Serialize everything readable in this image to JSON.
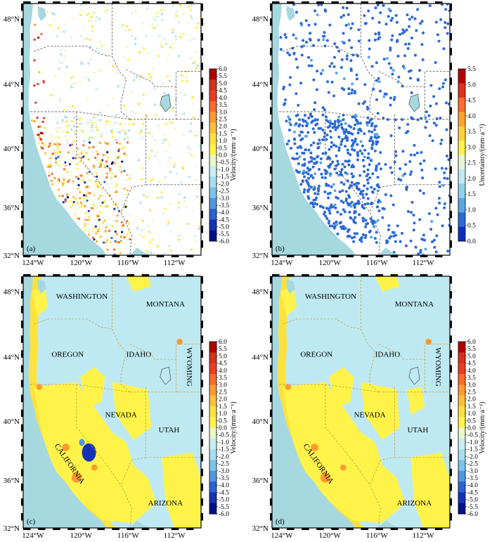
{
  "panels": [
    {
      "id": "a",
      "label": "(a)",
      "type": "dots-velocity",
      "colorbar": "velocity"
    },
    {
      "id": "b",
      "label": "(b)",
      "type": "dots-uncertainty",
      "colorbar": "uncertainty"
    },
    {
      "id": "c",
      "label": "(c)",
      "type": "field",
      "colorbar": "velocity",
      "variant": 1
    },
    {
      "id": "d",
      "label": "(d)",
      "type": "field",
      "colorbar": "velocity",
      "variant": 2
    }
  ],
  "axes": {
    "lon_labels": [
      "124°W",
      "120°W",
      "116°W",
      "112°W"
    ],
    "lat_labels": [
      "48°N",
      "44°N",
      "40°N",
      "36°N",
      "32°N"
    ]
  },
  "colorbars": {
    "velocity": {
      "label": "Velocity/(mm·a⁻¹)",
      "ticks": [
        "6.0",
        "5.5",
        "5.0",
        "4.5",
        "4.0",
        "3.5",
        "3.0",
        "2.5",
        "2.0",
        "1.5",
        "1.0",
        "0.5",
        "0.0",
        "-0.5",
        "-1.0",
        "-1.5",
        "-2.0",
        "-2.5",
        "-3.0",
        "-3.5",
        "-4.0",
        "-4.5",
        "-5.0",
        "-5.5",
        "-6.0"
      ],
      "colors": [
        "#b30000",
        "#d7301f",
        "#f03b20",
        "#fd6a2a",
        "#fe9a2e",
        "#fec03a",
        "#fde23d",
        "#fff34a",
        "#e9f7c8",
        "#c8eef2",
        "#a7def0",
        "#7cc3ea",
        "#4f97e0",
        "#2b63d4",
        "#1432b8",
        "#00138a"
      ]
    },
    "uncertainty": {
      "label": "Uncertainty/(mm·a⁻¹)",
      "ticks": [
        "5.5",
        "5.0",
        "4.5",
        "4.0",
        "3.5",
        "3.0",
        "2.5",
        "2.0",
        "1.5",
        "1.0",
        "0.5",
        "0.0"
      ],
      "colors": [
        "#b30000",
        "#e0301e",
        "#fd6a2a",
        "#fea32e",
        "#fed23c",
        "#fff34a",
        "#e4f5d8",
        "#bfe9f2",
        "#8fd0ec",
        "#5aa7e3",
        "#2c6ad8",
        "#0a2fc0"
      ]
    }
  },
  "state_labels": [
    {
      "name": "WASHINGTON"
    },
    {
      "name": "MONTANA"
    },
    {
      "name": "OREGON"
    },
    {
      "name": "IDAHO"
    },
    {
      "name": "WYOMING"
    },
    {
      "name": "NEVADA"
    },
    {
      "name": "UTAH"
    },
    {
      "name": "CALIFORNIA"
    },
    {
      "name": "ARIZONA"
    }
  ]
}
